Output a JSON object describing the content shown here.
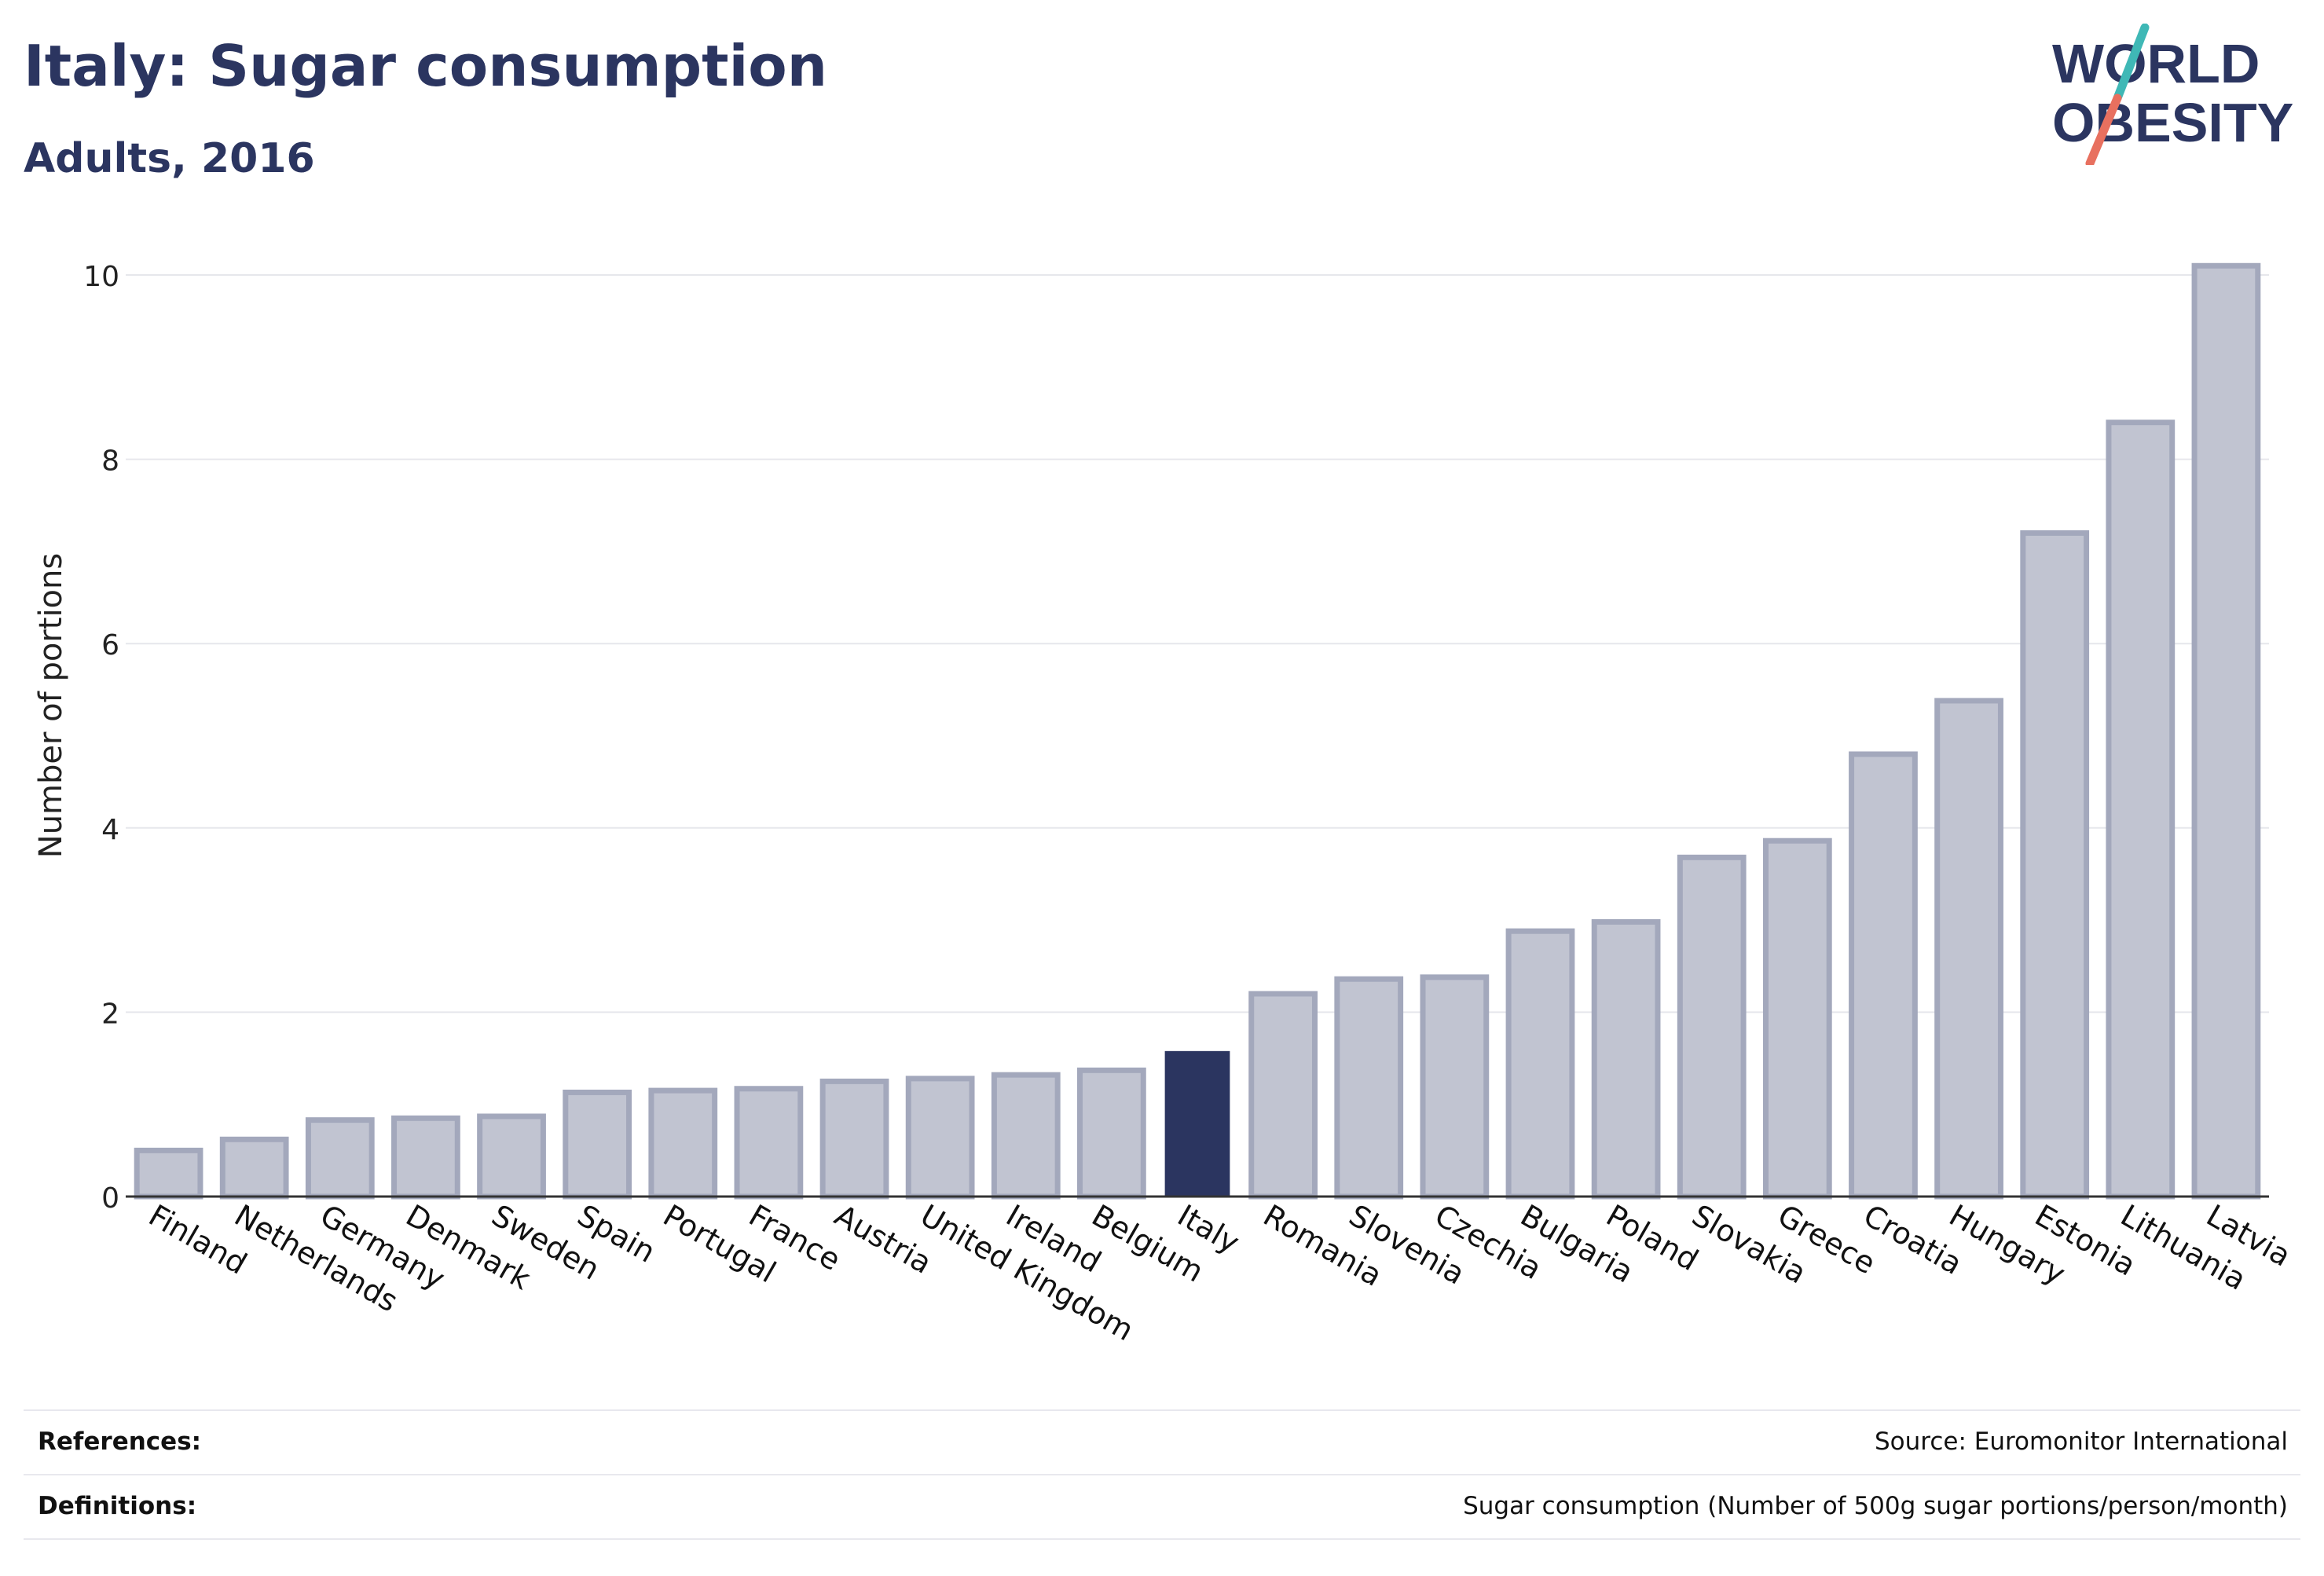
{
  "header": {
    "title": "Italy: Sugar consumption",
    "subtitle": "Adults, 2016"
  },
  "logo": {
    "line1": "WORLD",
    "line2": "OBESITY",
    "colors": {
      "text": "#2b3560",
      "accent1": "#3fb8b6",
      "accent2": "#e8705f"
    }
  },
  "footer": {
    "references_label": "References:",
    "references_value": "Source: Euromonitor International",
    "definitions_label": "Definitions:",
    "definitions_value": "Sugar consumption (Number of 500g sugar portions/person/month)"
  },
  "chart_data": {
    "type": "bar",
    "title": "Italy: Sugar consumption",
    "subtitle": "Adults, 2016",
    "xlabel": "",
    "ylabel": "Number of portions",
    "ylim": [
      0,
      10.4
    ],
    "yticks": [
      0,
      2,
      4,
      6,
      8,
      10
    ],
    "grid": true,
    "highlight": "Italy",
    "colors": {
      "bar": "#c1c4d1",
      "bar_edge": "#a3a8bc",
      "highlight": "#2b3560",
      "grid": "#e6e7ec",
      "axis": "#333333"
    },
    "categories": [
      "Finland",
      "Netherlands",
      "Germany",
      "Denmark",
      "Sweden",
      "Spain",
      "Portugal",
      "France",
      "Austria",
      "United Kingdom",
      "Ireland",
      "Belgium",
      "Italy",
      "Romania",
      "Slovenia",
      "Czechia",
      "Bulgaria",
      "Poland",
      "Slovakia",
      "Greece",
      "Croatia",
      "Hungary",
      "Estonia",
      "Lithuania",
      "Latvia"
    ],
    "values": [
      0.5,
      0.62,
      0.83,
      0.85,
      0.87,
      1.13,
      1.15,
      1.17,
      1.25,
      1.28,
      1.32,
      1.37,
      1.57,
      2.2,
      2.36,
      2.38,
      2.88,
      2.98,
      3.68,
      3.86,
      4.8,
      5.38,
      7.2,
      8.4,
      10.1
    ]
  }
}
